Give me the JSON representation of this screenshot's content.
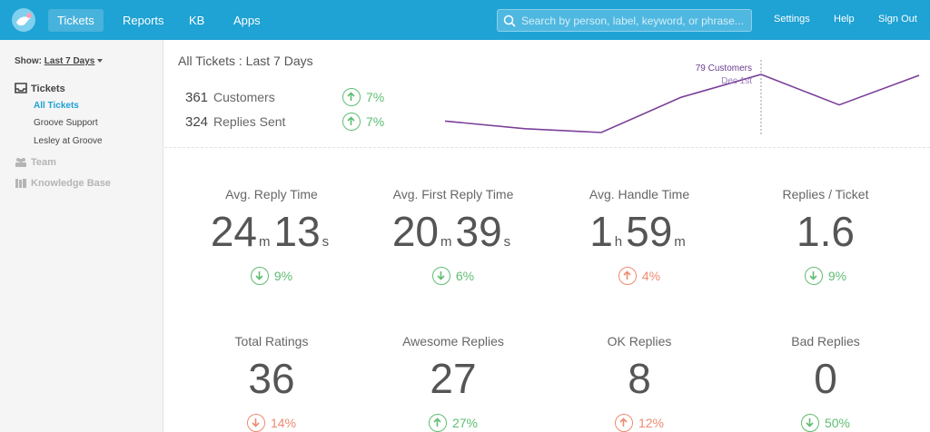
{
  "nav": {
    "tabs": [
      {
        "label": "Tickets",
        "active": true
      },
      {
        "label": "Reports",
        "active": false
      },
      {
        "label": "KB",
        "active": false
      },
      {
        "label": "Apps",
        "active": false
      }
    ],
    "search_placeholder": "Search by person, label, keyword, or phrase...",
    "links": [
      "Settings",
      "Help",
      "Sign Out"
    ]
  },
  "sidebar": {
    "show_label": "Show:",
    "show_value": "Last 7 Days",
    "tickets_label": "Tickets",
    "ticket_items": [
      "All Tickets",
      "Groove Support",
      "Lesley at Groove"
    ],
    "team_label": "Team",
    "kb_label": "Knowledge Base"
  },
  "summary": {
    "title": "All Tickets : Last 7 Days",
    "customers_count": "361",
    "customers_label": "Customers",
    "customers_trend": "7%",
    "replies_count": "324",
    "replies_label": "Replies Sent",
    "replies_trend": "7%"
  },
  "chart_data": {
    "type": "line",
    "values": [
      30,
      22,
      18,
      55,
      79,
      47,
      78
    ],
    "highlight_index": 4,
    "tooltip_value": "79 Customers",
    "tooltip_date": "Dec 1st",
    "color": "#7b3f99"
  },
  "metrics_row1": [
    {
      "label": "Avg. Reply Time",
      "parts": [
        [
          "24",
          "m"
        ],
        [
          "13",
          "s"
        ]
      ],
      "trend": "9%",
      "direction": "down",
      "status": "good"
    },
    {
      "label": "Avg. First Reply Time",
      "parts": [
        [
          "20",
          "m"
        ],
        [
          "39",
          "s"
        ]
      ],
      "trend": "6%",
      "direction": "down",
      "status": "good"
    },
    {
      "label": "Avg. Handle Time",
      "parts": [
        [
          "1",
          "h"
        ],
        [
          "59",
          "m"
        ]
      ],
      "trend": "4%",
      "direction": "up",
      "status": "bad"
    },
    {
      "label": "Replies / Ticket",
      "parts": [
        [
          "1.6",
          ""
        ]
      ],
      "trend": "9%",
      "direction": "down",
      "status": "good"
    }
  ],
  "metrics_row2": [
    {
      "label": "Total Ratings",
      "parts": [
        [
          "36",
          ""
        ]
      ],
      "trend": "14%",
      "direction": "down",
      "status": "bad"
    },
    {
      "label": "Awesome Replies",
      "parts": [
        [
          "27",
          ""
        ]
      ],
      "trend": "27%",
      "direction": "up",
      "status": "good"
    },
    {
      "label": "OK Replies",
      "parts": [
        [
          "8",
          ""
        ]
      ],
      "trend": "12%",
      "direction": "up",
      "status": "bad"
    },
    {
      "label": "Bad Replies",
      "parts": [
        [
          "0",
          ""
        ]
      ],
      "trend": "50%",
      "direction": "down",
      "status": "good"
    }
  ],
  "colors": {
    "brand": "#1fa2d4",
    "good": "#5ebd73",
    "bad": "#ee8a70",
    "chart": "#7b3f99"
  }
}
